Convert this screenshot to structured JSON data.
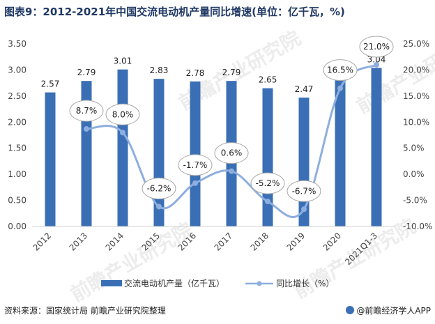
{
  "title": "图表9：2012-2021年中国交流电动机产量同比增速(单位：亿千瓦，%)",
  "source": "资料来源：国家统计局 前瞻产业研究院整理",
  "brand": "@前瞻经济学人APP",
  "colors": {
    "bar": "#3a6fb5",
    "line": "#8eaee0",
    "title": "#1f3864"
  },
  "chart_data": {
    "type": "bar+line",
    "categories": [
      "2012",
      "2013",
      "2014",
      "2015",
      "2016",
      "2017",
      "2018",
      "2019",
      "2020",
      "2021Q1-3"
    ],
    "series": [
      {
        "name": "交流电动机产量（亿千瓦）",
        "type": "bar",
        "axis": "left",
        "values": [
          2.57,
          2.79,
          3.01,
          2.83,
          2.78,
          2.79,
          2.65,
          2.47,
          2.88,
          3.04
        ],
        "labels": [
          "2.57",
          "2.79",
          "3.01",
          "2.83",
          "2.78",
          "2.79",
          "2.65",
          "2.47",
          "2.88",
          "3.04"
        ]
      },
      {
        "name": "同比增长（%）",
        "type": "line",
        "axis": "right",
        "values": [
          null,
          8.7,
          8.0,
          -6.2,
          -1.7,
          0.6,
          -5.2,
          -6.7,
          16.5,
          21.0
        ],
        "labels": [
          "",
          "8.7%",
          "8.0%",
          "-6.2%",
          "-1.7%",
          "0.6%",
          "-5.2%",
          "-6.7%",
          "16.5%",
          "21.0%"
        ]
      }
    ],
    "y_left": {
      "min": 0,
      "max": 3.5,
      "ticks": [
        "0.00",
        "0.50",
        "1.00",
        "1.50",
        "2.00",
        "2.50",
        "3.00",
        "3.50"
      ]
    },
    "y_right": {
      "min": -10,
      "max": 25,
      "ticks": [
        "-10.0%",
        "-5.0%",
        "0.0%",
        "5.0%",
        "10.0%",
        "15.0%",
        "20.0%",
        "25.0%"
      ]
    },
    "grid": false,
    "legend_position": "bottom"
  }
}
